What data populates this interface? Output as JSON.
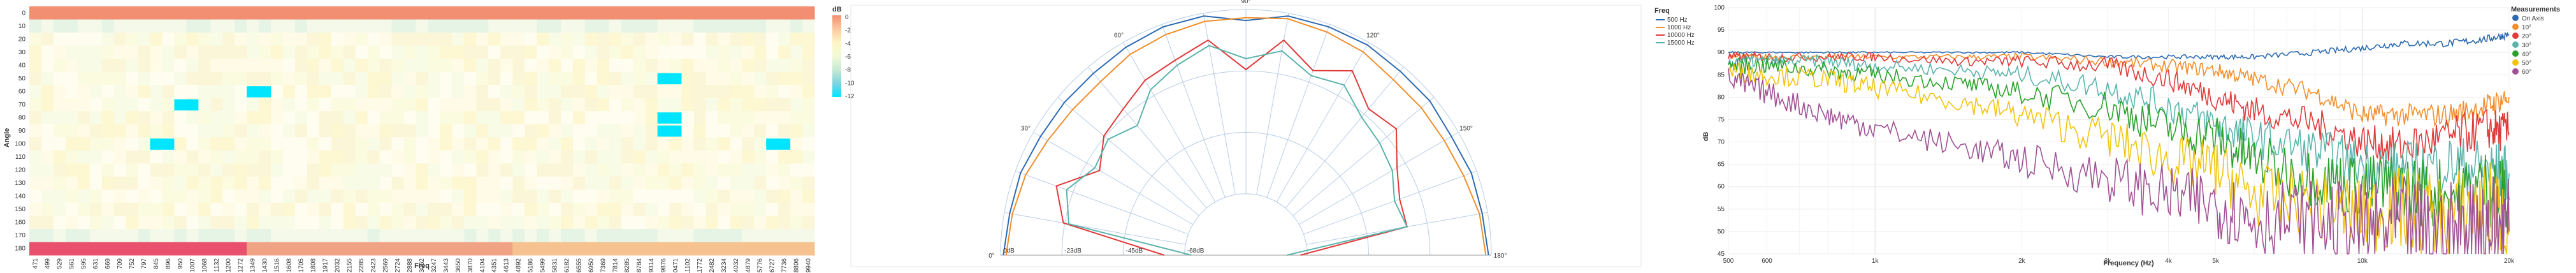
{
  "chart_data": [
    {
      "type": "heatmap",
      "xlabel": "Freq",
      "ylabel": "Angle",
      "legend_title": "dB",
      "legend_ticks": [
        "0",
        "-2",
        "-4",
        "-6",
        "-8",
        "-10",
        "-12"
      ],
      "colorscale": [
        "#f28e71",
        "#fbc9a0",
        "#fdf5c4",
        "#f3f9d7",
        "#c9ead3",
        "#7fd3e0",
        "#00e5ff"
      ],
      "y_ticks": [
        0,
        10,
        20,
        30,
        40,
        50,
        60,
        70,
        80,
        90,
        100,
        110,
        120,
        130,
        140,
        150,
        160,
        170,
        180
      ],
      "x_tick_labels": [
        "471",
        "499",
        "529",
        "561",
        "595",
        "631",
        "669",
        "709",
        "752",
        "797",
        "845",
        "896",
        "950",
        "1007",
        "1068",
        "1132",
        "1200",
        "1272",
        "1349",
        "1430",
        "1516",
        "1608",
        "1705",
        "1808",
        "1917",
        "2032",
        "2155",
        "2285",
        "2423",
        "2569",
        "2724",
        "2888",
        "3062",
        "3247",
        "3443",
        "3650",
        "3870",
        "4104",
        "4351",
        "4613",
        "4892",
        "5186",
        "5499",
        "5831",
        "6182",
        "6555",
        "6950",
        "7369",
        "7814",
        "8285",
        "8784",
        "9314",
        "9876",
        "10471",
        "11102",
        "11772",
        "12482",
        "13234",
        "14032",
        "14879",
        "15776",
        "16727",
        "17736",
        "18806",
        "19940"
      ],
      "hot_cells": [
        {
          "angle": 50,
          "freq_index": 52,
          "db": -12
        },
        {
          "angle": 60,
          "freq_index": 18,
          "db": -12
        },
        {
          "angle": 70,
          "freq_index": 12,
          "db": -12
        },
        {
          "angle": 80,
          "freq_index": 52,
          "db": -11
        },
        {
          "angle": 90,
          "freq_index": 52,
          "db": -12
        },
        {
          "angle": 100,
          "freq_index": 61,
          "db": -12
        },
        {
          "angle": 100,
          "freq_index": 10,
          "db": -11
        }
      ]
    },
    {
      "type": "line",
      "subtype": "polar",
      "legend_title": "Freq",
      "angle_labels": [
        "0°",
        "30°",
        "60°",
        "90°",
        "120°",
        "150°",
        "180°"
      ],
      "radius_labels": [
        "0dB",
        "-23dB",
        "-45dB",
        "-68dB"
      ],
      "series": [
        {
          "name": "500 Hz",
          "color": "#2d6ab1",
          "angles": [
            0,
            10,
            20,
            30,
            40,
            50,
            60,
            70,
            80,
            90,
            100,
            110,
            120,
            130,
            140,
            150,
            160,
            170,
            180
          ],
          "db": [
            -1,
            -2,
            -2,
            -3,
            -3,
            -3,
            -2,
            -1,
            -1,
            -4,
            -1,
            -1,
            -1,
            -2,
            -2,
            -3,
            -2,
            -2,
            -1
          ]
        },
        {
          "name": "1000 Hz",
          "color": "#f28e2b",
          "angles": [
            0,
            10,
            20,
            30,
            40,
            50,
            60,
            70,
            80,
            90,
            100,
            110,
            120,
            130,
            140,
            150,
            160,
            170,
            180
          ],
          "db": [
            -2,
            -3,
            -4,
            -6,
            -7,
            -7,
            -5,
            -4,
            -3,
            -3,
            -2,
            -3,
            -4,
            -6,
            -6,
            -6,
            -5,
            -3,
            -2
          ]
        },
        {
          "name": "10000 Hz",
          "color": "#e03a3a",
          "angles": [
            0,
            10,
            20,
            30,
            40,
            50,
            60,
            70,
            80,
            90,
            100,
            110,
            120,
            130,
            140,
            150,
            160,
            170,
            180
          ],
          "db": [
            -60,
            -22,
            -16,
            -28,
            -22,
            -20,
            -16,
            -14,
            -10,
            -22,
            -10,
            -18,
            -12,
            -20,
            -18,
            -26,
            -30,
            -30,
            -70
          ]
        },
        {
          "name": "15000 Hz",
          "color": "#5ab4ac",
          "angles": [
            0,
            10,
            20,
            30,
            40,
            50,
            60,
            70,
            80,
            90,
            100,
            110,
            120,
            130,
            140,
            150,
            160,
            170,
            180
          ],
          "db": [
            -70,
            -24,
            -20,
            -26,
            -24,
            -28,
            -20,
            -16,
            -12,
            -18,
            -14,
            -20,
            -18,
            -24,
            -26,
            -28,
            -32,
            -30,
            -75
          ]
        }
      ]
    },
    {
      "type": "line",
      "xlabel": "Frequency (Hz)",
      "ylabel": "dB",
      "x_scale": "log",
      "xlim": [
        500,
        20000
      ],
      "ylim": [
        45,
        100
      ],
      "x_tick_labels": [
        "500",
        "600",
        "1k",
        "2k",
        "3k",
        "4k",
        "5k",
        "10k",
        "20k"
      ],
      "x_tick_values": [
        500,
        600,
        1000,
        2000,
        3000,
        4000,
        5000,
        10000,
        20000
      ],
      "y_ticks": [
        45,
        50,
        55,
        60,
        65,
        70,
        75,
        80,
        85,
        90,
        95,
        100
      ],
      "legend_title": "Measurements",
      "series": [
        {
          "name": "On Axis",
          "color": "#2d6ab1",
          "x": [
            500,
            600,
            800,
            1000,
            1500,
            2000,
            3000,
            4000,
            5000,
            6000,
            8000,
            10000,
            12000,
            15000,
            18000,
            20000
          ],
          "y": [
            90,
            90,
            90,
            90,
            90,
            90,
            89,
            89,
            89,
            89,
            90,
            91,
            92,
            92,
            93,
            94
          ]
        },
        {
          "name": "10°",
          "color": "#f28e2b",
          "x": [
            500,
            600,
            800,
            1000,
            1500,
            2000,
            3000,
            4000,
            5000,
            6000,
            8000,
            10000,
            12000,
            15000,
            18000,
            20000
          ],
          "y": [
            89,
            89,
            89,
            89,
            89,
            89,
            88,
            87,
            86,
            84,
            81,
            76,
            76,
            76,
            78,
            80
          ]
        },
        {
          "name": "20°",
          "color": "#e03a3a",
          "x": [
            500,
            600,
            800,
            1000,
            1500,
            2000,
            3000,
            4000,
            5000,
            6000,
            8000,
            10000,
            12000,
            15000,
            18000,
            20000
          ],
          "y": [
            89,
            89,
            89,
            89,
            88,
            88,
            87,
            84,
            80,
            77,
            74,
            70,
            69,
            71,
            73,
            72
          ]
        },
        {
          "name": "30°",
          "color": "#5ab4ac",
          "x": [
            500,
            600,
            800,
            1000,
            1500,
            2000,
            3000,
            4000,
            5000,
            6000,
            8000,
            10000,
            12000,
            15000,
            18000,
            20000
          ],
          "y": [
            88,
            88,
            88,
            87,
            86,
            85,
            82,
            78,
            74,
            71,
            68,
            65,
            64,
            65,
            64,
            63
          ]
        },
        {
          "name": "40°",
          "color": "#2ca02c",
          "x": [
            500,
            600,
            800,
            1000,
            1500,
            2000,
            3000,
            4000,
            5000,
            6000,
            8000,
            10000,
            12000,
            15000,
            18000,
            20000
          ],
          "y": [
            87,
            87,
            86,
            85,
            83,
            81,
            78,
            73,
            71,
            66,
            62,
            60,
            60,
            58,
            60,
            57
          ]
        },
        {
          "name": "50°",
          "color": "#f1c40f",
          "x": [
            500,
            600,
            800,
            1000,
            1500,
            2000,
            3000,
            4000,
            5000,
            6000,
            8000,
            10000,
            12000,
            15000,
            18000,
            20000
          ],
          "y": [
            86,
            85,
            84,
            82,
            79,
            76,
            71,
            66,
            64,
            58,
            56,
            54,
            55,
            53,
            56,
            52
          ]
        },
        {
          "name": "60°",
          "color": "#a05195",
          "x": [
            500,
            600,
            800,
            1000,
            1500,
            2000,
            3000,
            4000,
            5000,
            6000,
            8000,
            10000,
            12000,
            15000,
            18000,
            20000
          ],
          "y": [
            84,
            81,
            76,
            73,
            69,
            66,
            62,
            58,
            56,
            53,
            52,
            50,
            51,
            49,
            52,
            50
          ]
        }
      ]
    }
  ]
}
